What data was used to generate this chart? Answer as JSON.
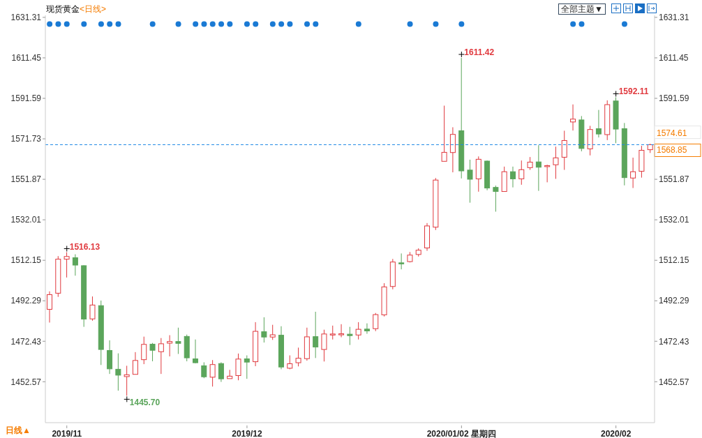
{
  "chart_data": {
    "type": "candlestick",
    "title": "现货黄金",
    "subtitle": "<日线>",
    "categories": [
      null,
      null,
      "2019/11",
      null,
      null,
      null,
      null,
      null,
      null,
      null,
      null,
      null,
      null,
      null,
      null,
      null,
      null,
      null,
      null,
      null,
      null,
      null,
      null,
      "2019/12",
      null,
      null,
      null,
      null,
      null,
      null,
      null,
      null,
      null,
      null,
      null,
      null,
      null,
      null,
      null,
      null,
      null,
      null,
      null,
      null,
      null,
      null,
      null,
      null,
      "2020/01/02 星期四",
      null,
      null,
      null,
      null,
      null,
      null,
      null,
      null,
      null,
      null,
      null,
      null,
      null,
      null,
      null,
      null,
      null,
      "2020/02",
      null,
      null,
      null,
      null
    ],
    "series": [
      {
        "ohlc": [
          [
            1488.1,
            1496.9,
            1481.6,
            1495.3
          ],
          [
            1496.0,
            1514.2,
            1494.2,
            1512.7
          ],
          [
            1512.7,
            1516.13,
            1503.7,
            1514.0
          ],
          [
            1513.4,
            1515.1,
            1504.6,
            1509.8
          ],
          [
            1509.5,
            1509.7,
            1479.5,
            1483.3
          ],
          [
            1483.4,
            1494.4,
            1482.5,
            1490.2
          ],
          [
            1489.9,
            1492.4,
            1460.8,
            1468.4
          ],
          [
            1467.9,
            1472.9,
            1456.4,
            1458.9
          ],
          [
            1458.7,
            1466.5,
            1448.2,
            1455.8
          ],
          [
            1455.1,
            1460.4,
            1445.7,
            1456.0
          ],
          [
            1456.2,
            1467.1,
            1456.2,
            1463.0
          ],
          [
            1463.4,
            1474.7,
            1461.2,
            1470.9
          ],
          [
            1471.0,
            1471.6,
            1462.6,
            1468.0
          ],
          [
            1467.3,
            1474.0,
            1456.4,
            1471.2
          ],
          [
            1471.5,
            1475.4,
            1465.0,
            1472.3
          ],
          [
            1472.3,
            1479.1,
            1466.2,
            1471.4
          ],
          [
            1474.8,
            1475.7,
            1462.6,
            1464.3
          ],
          [
            1463.8,
            1473.3,
            1461.6,
            1461.9
          ],
          [
            1460.4,
            1462.1,
            1454.3,
            1455.0
          ],
          [
            1454.8,
            1463.2,
            1450.2,
            1461.0
          ],
          [
            1461.5,
            1462.1,
            1452.5,
            1454.0
          ],
          [
            1454.1,
            1458.4,
            1454.1,
            1455.3
          ],
          [
            1455.6,
            1466.4,
            1453.3,
            1463.7
          ],
          [
            1463.8,
            1465.5,
            1454.0,
            1462.2
          ],
          [
            1462.4,
            1481.8,
            1460.2,
            1477.3
          ],
          [
            1477.1,
            1484.2,
            1471.8,
            1474.5
          ],
          [
            1474.5,
            1480.5,
            1473.1,
            1475.6
          ],
          [
            1475.4,
            1479.8,
            1458.7,
            1459.8
          ],
          [
            1459.2,
            1465.5,
            1458.7,
            1461.4
          ],
          [
            1461.9,
            1469.3,
            1460.1,
            1464.1
          ],
          [
            1463.9,
            1479.1,
            1462.9,
            1474.6
          ],
          [
            1474.7,
            1486.9,
            1464.2,
            1469.6
          ],
          [
            1468.4,
            1478.1,
            1462.5,
            1476.0
          ],
          [
            1475.9,
            1480.1,
            1473.3,
            1476.0
          ],
          [
            1475.9,
            1480.8,
            1474.4,
            1476.1
          ],
          [
            1475.9,
            1479.5,
            1470.6,
            1475.2
          ],
          [
            1475.5,
            1481.8,
            1473.3,
            1478.3
          ],
          [
            1478.4,
            1481.2,
            1476.1,
            1477.5
          ],
          [
            1478.6,
            1486.3,
            1477.4,
            1485.5
          ],
          [
            1485.4,
            1500.9,
            1484.6,
            1499.1
          ],
          [
            1499.3,
            1512.8,
            1497.9,
            1511.3
          ],
          [
            1510.9,
            1515.5,
            1507.7,
            1510.6
          ],
          [
            1511.5,
            1516.2,
            1511.1,
            1514.7
          ],
          [
            1515.0,
            1518.0,
            1514.0,
            1517.1
          ],
          [
            1518.2,
            1530.4,
            1516.8,
            1529.0
          ],
          [
            1528.4,
            1552.5,
            1527.0,
            1551.5
          ],
          [
            1560.7,
            1588.0,
            1560.7,
            1565.1
          ],
          [
            1565.0,
            1577.4,
            1555.3,
            1573.9
          ],
          [
            1575.7,
            1611.42,
            1552.3,
            1556.0
          ],
          [
            1556.4,
            1561.5,
            1540.4,
            1551.9
          ],
          [
            1552.1,
            1563.1,
            1545.8,
            1561.7
          ],
          [
            1560.8,
            1561.1,
            1546.5,
            1547.6
          ],
          [
            1547.9,
            1548.8,
            1536.0,
            1545.9
          ],
          [
            1545.9,
            1558.1,
            1545.9,
            1555.6
          ],
          [
            1555.6,
            1558.1,
            1547.9,
            1552.1
          ],
          [
            1552.1,
            1561.1,
            1549.2,
            1556.6
          ],
          [
            1557.6,
            1562.8,
            1556.5,
            1560.3
          ],
          [
            1560.4,
            1568.6,
            1546.2,
            1557.8
          ],
          [
            1558.4,
            1559.0,
            1550.4,
            1558.6
          ],
          [
            1559.0,
            1567.9,
            1552.1,
            1562.4
          ],
          [
            1562.7,
            1575.7,
            1556.5,
            1570.9
          ],
          [
            1580.0,
            1588.6,
            1575.8,
            1581.4
          ],
          [
            1581.0,
            1582.9,
            1565.6,
            1567.0
          ],
          [
            1566.8,
            1578.1,
            1563.6,
            1576.3
          ],
          [
            1576.7,
            1585.9,
            1572.4,
            1574.1
          ],
          [
            1573.8,
            1590.6,
            1571.1,
            1588.5
          ],
          [
            1590.3,
            1592.11,
            1569.6,
            1576.5
          ],
          [
            1576.7,
            1579.5,
            1548.9,
            1552.7
          ],
          [
            1552.5,
            1562.5,
            1547.6,
            1555.6
          ],
          [
            1555.8,
            1568.3,
            1552.7,
            1566.1
          ],
          [
            1566.4,
            1569.3,
            1564.8,
            1568.85
          ]
        ],
        "colors": [
          "#e0393e",
          "#e0393e",
          "#e0393e",
          "#5ba55b",
          "#5ba55b",
          "#e0393e",
          "#5ba55b",
          "#5ba55b",
          "#5ba55b",
          "#e0393e",
          "#e0393e",
          "#e0393e",
          "#5ba55b",
          "#e0393e",
          "#e0393e",
          "#5ba55b",
          "#5ba55b",
          "#5ba55b",
          "#5ba55b",
          "#e0393e",
          "#5ba55b",
          "#e0393e",
          "#e0393e",
          "#5ba55b",
          "#e0393e",
          "#5ba55b",
          "#e0393e",
          "#5ba55b",
          "#e0393e",
          "#e0393e",
          "#e0393e",
          "#5ba55b",
          "#e0393e",
          "#e0393e",
          "#e0393e",
          "#5ba55b",
          "#e0393e",
          "#5ba55b",
          "#e0393e",
          "#e0393e",
          "#e0393e",
          "#5ba55b",
          "#e0393e",
          "#e0393e",
          "#e0393e",
          "#e0393e",
          "#e0393e",
          "#e0393e",
          "#5ba55b",
          "#5ba55b",
          "#e0393e",
          "#5ba55b",
          "#5ba55b",
          "#e0393e",
          "#5ba55b",
          "#e0393e",
          "#e0393e",
          "#5ba55b",
          "#e0393e",
          "#e0393e",
          "#e0393e",
          "#e0393e",
          "#5ba55b",
          "#e0393e",
          "#5ba55b",
          "#e0393e",
          "#5ba55b",
          "#5ba55b",
          "#e0393e",
          "#e0393e",
          "#e0393e"
        ]
      },
      {
        "type": "scatter",
        "color": "#1a7ad4",
        "values": [
          1628,
          1628,
          1628,
          null,
          1628,
          null,
          1628,
          1628,
          1628,
          null,
          null,
          null,
          1628,
          null,
          null,
          1628,
          null,
          1628,
          1628,
          1628,
          1628,
          1628,
          null,
          1628,
          1628,
          null,
          1628,
          1628,
          1628,
          null,
          1628,
          1628,
          null,
          null,
          null,
          null,
          1628,
          null,
          null,
          null,
          null,
          null,
          1628,
          null,
          null,
          1628,
          null,
          null,
          1628,
          null,
          null,
          null,
          null,
          null,
          null,
          null,
          null,
          null,
          null,
          null,
          null,
          1628,
          1628,
          null,
          null,
          null,
          null,
          1628,
          null,
          null,
          null
        ]
      }
    ],
    "marker": "circle",
    "ylim": [
      1432.5,
      1632.3
    ],
    "yticks": [
      1452.57,
      1472.43,
      1492.29,
      1512.15,
      1532.01,
      1551.87,
      1571.73,
      1591.59,
      1611.45,
      1631.31
    ],
    "y2lim": [
      1432.5,
      1632.3
    ],
    "y2ticks": [
      1452.57,
      1472.43,
      1492.29,
      1512.15,
      1532.01,
      1551.87,
      1591.59,
      1611.45,
      1631.31
    ],
    "ref_lines": [
      {
        "axis": "y",
        "value": 1568.85,
        "label": "1568.85",
        "color": "#1e88e5",
        "line_style": "dashed"
      }
    ],
    "annotations": [
      "全部主题▼",
      "日线▲",
      "1516.13",
      "1445.70",
      "1611.42",
      "1592.11",
      "1574.61"
    ]
  }
}
